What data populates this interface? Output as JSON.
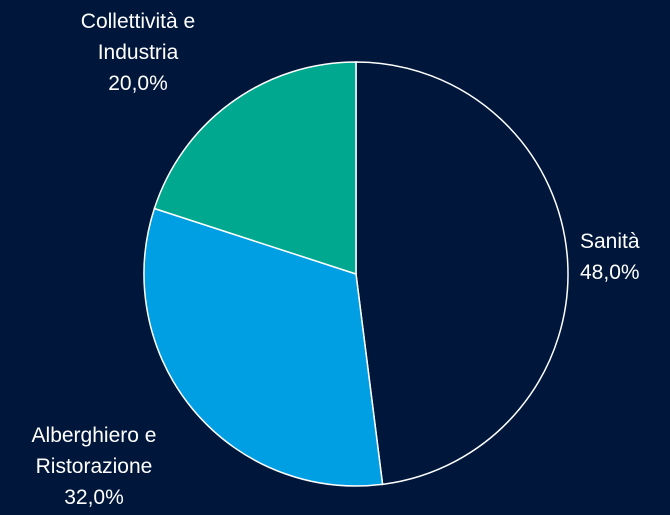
{
  "chart_data": {
    "type": "pie",
    "categories": [
      "Sanità",
      "Alberghiero e Ristorazione",
      "Collettività e Industria"
    ],
    "values": [
      48,
      32,
      20
    ],
    "value_labels": [
      "48,0%",
      "32,0%",
      "20,0%"
    ],
    "colors": [
      "#00173b",
      "#009fe3",
      "#00a88f"
    ]
  }
}
